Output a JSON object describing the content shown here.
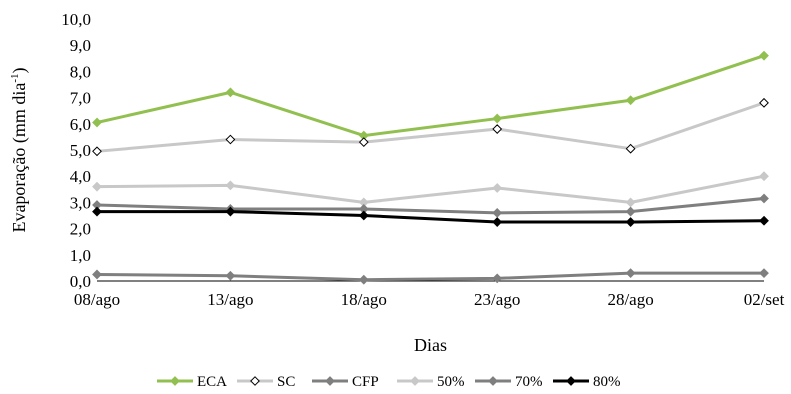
{
  "chart_data": {
    "type": "line",
    "categories": [
      "08/ago",
      "13/ago",
      "18/ago",
      "23/ago",
      "28/ago",
      "02/set"
    ],
    "y_ticks": [
      "0,0",
      "1,0",
      "2,0",
      "3,0",
      "4,0",
      "5,0",
      "6,0",
      "7,0",
      "8,0",
      "9,0",
      "10,0"
    ],
    "ylim": [
      0,
      10
    ],
    "xlabel": "Dias",
    "ylabel_main": "Evaporação (mm dia",
    "ylabel_sup": "-1",
    "ylabel_end": ")",
    "grid": false,
    "legend_position": "bottom",
    "series": [
      {
        "name": "ECA",
        "values": [
          6.05,
          7.2,
          5.55,
          6.2,
          6.9,
          8.6
        ],
        "color": "#92c050",
        "marker": "diamond-filled"
      },
      {
        "name": "SC",
        "values": [
          4.95,
          5.4,
          5.3,
          5.8,
          5.05,
          6.8
        ],
        "color": "#c8c8c8",
        "marker": "diamond-open"
      },
      {
        "name": "CFP",
        "values": [
          0.25,
          0.2,
          0.05,
          0.1,
          0.3,
          0.3
        ],
        "color": "#7f7f7f",
        "marker": "diamond-filled"
      },
      {
        "name": "50%",
        "values": [
          3.6,
          3.65,
          3.0,
          3.55,
          3.0,
          4.0
        ],
        "color": "#c8c8c8",
        "marker": "diamond-filled"
      },
      {
        "name": "70%",
        "values": [
          2.9,
          2.75,
          2.75,
          2.6,
          2.65,
          3.15
        ],
        "color": "#7f7f7f",
        "marker": "diamond-filled"
      },
      {
        "name": "80%",
        "values": [
          2.65,
          2.65,
          2.5,
          2.25,
          2.25,
          2.3
        ],
        "color": "#000000",
        "marker": "diamond-filled"
      }
    ]
  }
}
